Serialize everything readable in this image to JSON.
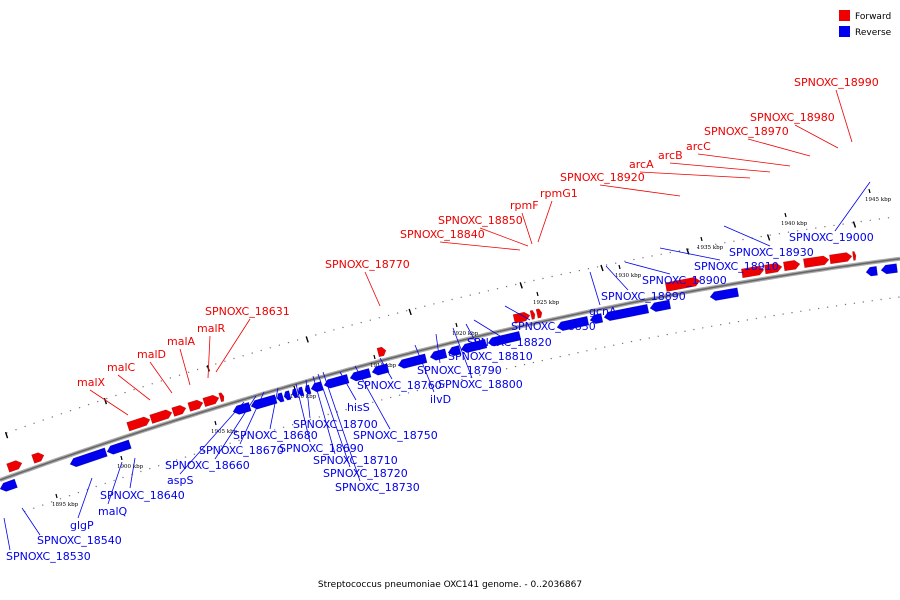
{
  "caption": "Streptococcus pneumoniae OXC141 genome. - 0..2036867",
  "legend": [
    {
      "label": "Forward",
      "color": "#ee0000"
    },
    {
      "label": "Reverse",
      "color": "#0000ee"
    }
  ],
  "colors": {
    "forward": "#ee0000",
    "reverse": "#0000ee",
    "backbone": "#888888"
  },
  "ticks": [
    "1895 kbp",
    "1900 kbp",
    "1905 kbp",
    "1910 kbp",
    "1915 kbp",
    "1920 kbp",
    "1925 kbp",
    "1930 kbp",
    "1935 kbp",
    "1940 kbp",
    "1945 kbp"
  ],
  "genes": [
    {
      "label": "SPNOXC_18530",
      "strand": "reverse"
    },
    {
      "label": "SPNOXC_18540",
      "strand": "reverse"
    },
    {
      "label": "glgP",
      "strand": "reverse"
    },
    {
      "label": "malQ",
      "strand": "reverse"
    },
    {
      "label": "SPNOXC_18640",
      "strand": "reverse"
    },
    {
      "label": "aspS",
      "strand": "reverse"
    },
    {
      "label": "SPNOXC_18660",
      "strand": "reverse"
    },
    {
      "label": "SPNOXC_18670",
      "strand": "reverse"
    },
    {
      "label": "SPNOXC_18680",
      "strand": "reverse"
    },
    {
      "label": "SPNOXC_18690",
      "strand": "reverse"
    },
    {
      "label": "SPNOXC_18700",
      "strand": "reverse"
    },
    {
      "label": "SPNOXC_18710",
      "strand": "reverse"
    },
    {
      "label": "SPNOXC_18720",
      "strand": "reverse"
    },
    {
      "label": "SPNOXC_18730",
      "strand": "reverse"
    },
    {
      "label": "hisS",
      "strand": "reverse"
    },
    {
      "label": "SPNOXC_18750",
      "strand": "reverse"
    },
    {
      "label": "SPNOXC_18760",
      "strand": "reverse"
    },
    {
      "label": "ilvD",
      "strand": "reverse"
    },
    {
      "label": "SPNOXC_18790",
      "strand": "reverse"
    },
    {
      "label": "SPNOXC_18800",
      "strand": "reverse"
    },
    {
      "label": "SPNOXC_18810",
      "strand": "reverse"
    },
    {
      "label": "SPNOXC_18820",
      "strand": "reverse"
    },
    {
      "label": "SPNOXC_18830",
      "strand": "reverse"
    },
    {
      "label": "gcnA",
      "strand": "reverse"
    },
    {
      "label": "SPNOXC_18890",
      "strand": "reverse"
    },
    {
      "label": "SPNOXC_18900",
      "strand": "reverse"
    },
    {
      "label": "SPNOXC_18910",
      "strand": "reverse"
    },
    {
      "label": "SPNOXC_18930",
      "strand": "reverse"
    },
    {
      "label": "SPNOXC_19000",
      "strand": "reverse"
    },
    {
      "label": "malX",
      "strand": "forward"
    },
    {
      "label": "malC",
      "strand": "forward"
    },
    {
      "label": "malD",
      "strand": "forward"
    },
    {
      "label": "malA",
      "strand": "forward"
    },
    {
      "label": "malR",
      "strand": "forward"
    },
    {
      "label": "SPNOXC_18631",
      "strand": "forward"
    },
    {
      "label": "SPNOXC_18770",
      "strand": "forward"
    },
    {
      "label": "SPNOXC_18840",
      "strand": "forward"
    },
    {
      "label": "SPNOXC_18850",
      "strand": "forward"
    },
    {
      "label": "rpmF",
      "strand": "forward"
    },
    {
      "label": "rpmG1",
      "strand": "forward"
    },
    {
      "label": "SPNOXC_18920",
      "strand": "forward"
    },
    {
      "label": "arcA",
      "strand": "forward"
    },
    {
      "label": "arcB",
      "strand": "forward"
    },
    {
      "label": "arcC",
      "strand": "forward"
    },
    {
      "label": "SPNOXC_18970",
      "strand": "forward"
    },
    {
      "label": "SPNOXC_18980",
      "strand": "forward"
    },
    {
      "label": "SPNOXC_18990",
      "strand": "forward"
    }
  ]
}
